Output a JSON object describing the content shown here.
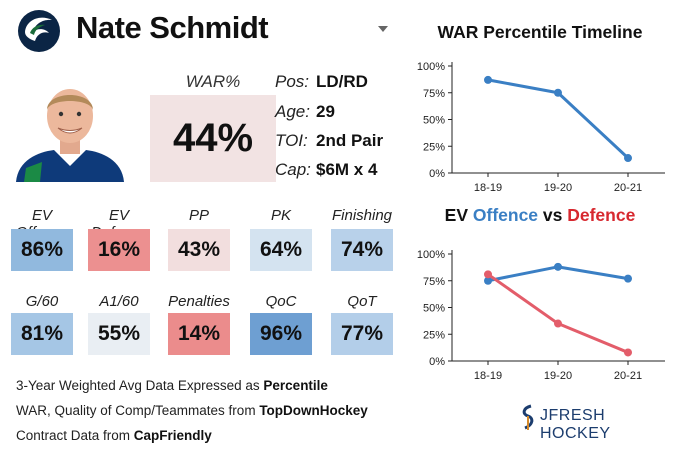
{
  "header": {
    "player_name": "Nate Schmidt"
  },
  "war": {
    "label": "WAR%",
    "value": "44%"
  },
  "info": [
    {
      "label": "Pos:",
      "value": "LD/RD"
    },
    {
      "label": "Age:",
      "value": "29"
    },
    {
      "label": "TOI:",
      "value": "2nd Pair"
    },
    {
      "label": "Cap:",
      "value": "$6M x 4"
    }
  ],
  "stats": [
    {
      "label": "EV Offence",
      "value": "86%",
      "color": "#91b9de"
    },
    {
      "label": "EV Defence",
      "value": "16%",
      "color": "#ec9090"
    },
    {
      "label": "PP",
      "value": "43%",
      "color": "#f2dede"
    },
    {
      "label": "PK",
      "value": "64%",
      "color": "#d4e3f0"
    },
    {
      "label": "Finishing",
      "value": "74%",
      "color": "#b8d1ea"
    },
    {
      "label": "G/60",
      "value": "81%",
      "color": "#a5c6e5"
    },
    {
      "label": "A1/60",
      "value": "55%",
      "color": "#e9eef3"
    },
    {
      "label": "Penalties",
      "value": "14%",
      "color": "#eb8c8c"
    },
    {
      "label": "QoC",
      "value": "96%",
      "color": "#6e9fd2"
    },
    {
      "label": "QoT",
      "value": "77%",
      "color": "#b3cee9"
    }
  ],
  "footer": {
    "line1_text": "3-Year Weighted Avg Data Expressed as ",
    "line1_bold": "Percentile",
    "line2_text": "WAR, Quality of Comp/Teammates from ",
    "line2_bold": "TopDownHockey",
    "line3_text": "Contract Data from ",
    "line3_bold": "CapFriendly"
  },
  "brand": {
    "name": "JFRESH HOCKEY"
  },
  "chart_data": [
    {
      "type": "line",
      "title": "WAR Percentile Timeline",
      "categories": [
        "18-19",
        "19-20",
        "20-21"
      ],
      "series": [
        {
          "name": "WAR",
          "values": [
            87,
            75,
            14
          ],
          "color": "#3a7fc4"
        }
      ],
      "ylim": [
        0,
        100
      ],
      "yticks": [
        "0%",
        "25%",
        "50%",
        "75%",
        "100%"
      ],
      "grid": false
    },
    {
      "type": "line",
      "title_parts": {
        "a": "EV ",
        "b": "Offence",
        "c": " vs ",
        "d": "Defence"
      },
      "categories": [
        "18-19",
        "19-20",
        "20-21"
      ],
      "series": [
        {
          "name": "EV Offence",
          "values": [
            75,
            88,
            77
          ],
          "color": "#3a7fc4"
        },
        {
          "name": "EV Defence",
          "values": [
            81,
            35,
            8
          ],
          "color": "#e35d6a"
        }
      ],
      "ylim": [
        0,
        100
      ],
      "yticks": [
        "0%",
        "25%",
        "50%",
        "75%",
        "100%"
      ],
      "grid": false
    }
  ]
}
